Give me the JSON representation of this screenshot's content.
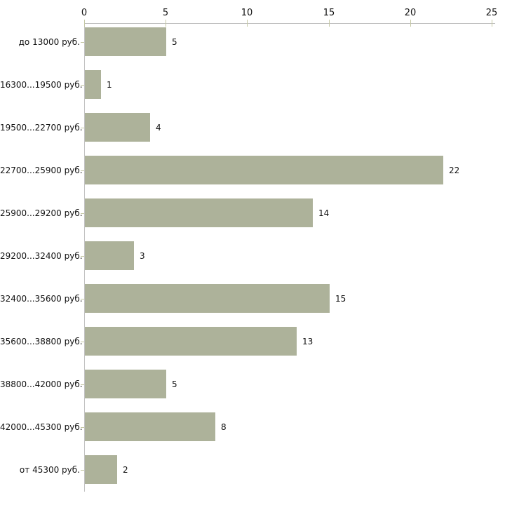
{
  "chart_data": {
    "type": "bar",
    "orientation": "horizontal",
    "title": "",
    "xlabel": "",
    "ylabel": "",
    "categories": [
      "до 13000 руб.",
      "16300...19500 руб.",
      "19500...22700 руб.",
      "22700...25900 руб.",
      "25900...29200 руб.",
      "29200...32400 руб.",
      "32400...35600 руб.",
      "35600...38800 руб.",
      "38800...42000 руб.",
      "42000...45300 руб.",
      "от 45300 руб."
    ],
    "values": [
      5,
      1,
      4,
      22,
      14,
      3,
      15,
      13,
      5,
      8,
      2
    ],
    "x_ticks": [
      0,
      5,
      10,
      15,
      20,
      25
    ],
    "xlim": [
      0,
      25
    ],
    "axis_position": "top",
    "grid": false,
    "legend_position": "none",
    "value_labels_shown": true,
    "colors": {
      "bar": "#adb29a",
      "axis_line": "#c2c2c2",
      "tick_mark": "#c5c8a4",
      "text": "#111111",
      "background": "#ffffff"
    }
  }
}
